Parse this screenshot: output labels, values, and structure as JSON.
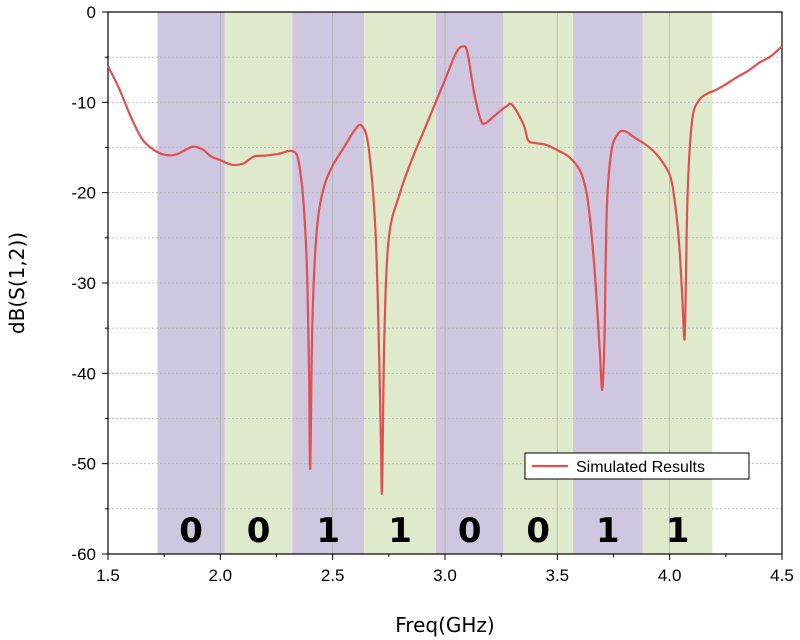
{
  "chart_data": {
    "type": "line",
    "xlabel": "Freq(GHz)",
    "ylabel": "dB(S(1,2))",
    "xlim": [
      1.5,
      4.5
    ],
    "ylim": [
      -60,
      0
    ],
    "x_ticks": [
      "1.5",
      "2.0",
      "2.5",
      "3.0",
      "3.5",
      "4.0",
      "4.5"
    ],
    "x_tick_values": [
      1.5,
      2.0,
      2.5,
      3.0,
      3.5,
      4.0,
      4.5
    ],
    "y_ticks": [
      "0",
      "-10",
      "-20",
      "-30",
      "-40",
      "-50",
      "-60"
    ],
    "y_tick_values": [
      0,
      -10,
      -20,
      -30,
      -40,
      -50,
      -60
    ],
    "grid": true,
    "legend": {
      "placement": "lower-right",
      "entries": [
        "Simulated Results"
      ]
    },
    "colors": {
      "line": "#e05050",
      "band_purple": "#cfc6e0",
      "band_green": "#dfe9cc"
    },
    "bands": [
      {
        "start": 1.72,
        "end": 2.02,
        "color": "purple",
        "bit": "0"
      },
      {
        "start": 2.02,
        "end": 2.32,
        "color": "green",
        "bit": "0"
      },
      {
        "start": 2.32,
        "end": 2.64,
        "color": "purple",
        "bit": "1"
      },
      {
        "start": 2.64,
        "end": 2.96,
        "color": "green",
        "bit": "1"
      },
      {
        "start": 2.96,
        "end": 3.26,
        "color": "purple",
        "bit": "0"
      },
      {
        "start": 3.26,
        "end": 3.57,
        "color": "green",
        "bit": "0"
      },
      {
        "start": 3.57,
        "end": 3.88,
        "color": "purple",
        "bit": "1"
      },
      {
        "start": 3.88,
        "end": 4.19,
        "color": "green",
        "bit": "1"
      }
    ],
    "series": [
      {
        "name": "Simulated Results",
        "x": [
          1.5,
          1.55,
          1.6,
          1.65,
          1.7,
          1.75,
          1.8,
          1.85,
          1.88,
          1.92,
          1.96,
          2.0,
          2.05,
          2.1,
          2.15,
          2.2,
          2.26,
          2.3,
          2.32,
          2.34,
          2.355,
          2.37,
          2.385,
          2.395,
          2.4,
          2.41,
          2.43,
          2.46,
          2.5,
          2.55,
          2.6,
          2.63,
          2.66,
          2.69,
          2.705,
          2.715,
          2.72,
          2.73,
          2.75,
          2.8,
          2.85,
          2.9,
          2.95,
          3.0,
          3.05,
          3.08,
          3.1,
          3.13,
          3.16,
          3.18,
          3.22,
          3.27,
          3.3,
          3.35,
          3.37,
          3.4,
          3.45,
          3.5,
          3.55,
          3.6,
          3.63,
          3.65,
          3.67,
          3.69,
          3.7,
          3.71,
          3.72,
          3.74,
          3.77,
          3.8,
          3.85,
          3.9,
          3.95,
          4.0,
          4.02,
          4.04,
          4.055,
          4.065,
          4.07,
          4.08,
          4.1,
          4.13,
          4.17,
          4.2,
          4.25,
          4.3,
          4.35,
          4.4,
          4.45,
          4.5
        ],
        "values": [
          -6,
          -8.5,
          -11.5,
          -14,
          -15.2,
          -15.8,
          -15.8,
          -15.2,
          -14.9,
          -15.2,
          -16.0,
          -16.4,
          -16.9,
          -16.8,
          -16.0,
          -15.9,
          -15.7,
          -15.4,
          -15.4,
          -15.8,
          -17.5,
          -21.0,
          -28.0,
          -40.0,
          -50.5,
          -34.0,
          -24.0,
          -19.5,
          -17.0,
          -15.0,
          -13.0,
          -12.6,
          -15.0,
          -24.0,
          -36.0,
          -48.0,
          -52.8,
          -36.0,
          -25.0,
          -20.0,
          -16.5,
          -13.5,
          -10.5,
          -7.5,
          -4.5,
          -3.8,
          -4.5,
          -9.0,
          -12.0,
          -12.3,
          -11.5,
          -10.5,
          -10.3,
          -12.5,
          -14.2,
          -14.5,
          -14.7,
          -15.3,
          -16.0,
          -17.5,
          -20.0,
          -24.0,
          -30.0,
          -38.0,
          -41.8,
          -36.0,
          -22.0,
          -15.5,
          -13.5,
          -13.2,
          -14.0,
          -14.8,
          -16.0,
          -18.0,
          -20.5,
          -25.0,
          -31.0,
          -36.2,
          -33.0,
          -20.0,
          -12.0,
          -9.8,
          -9.0,
          -8.7,
          -8.0,
          -7.2,
          -6.5,
          -5.6,
          -4.9,
          -3.8
        ]
      }
    ]
  }
}
